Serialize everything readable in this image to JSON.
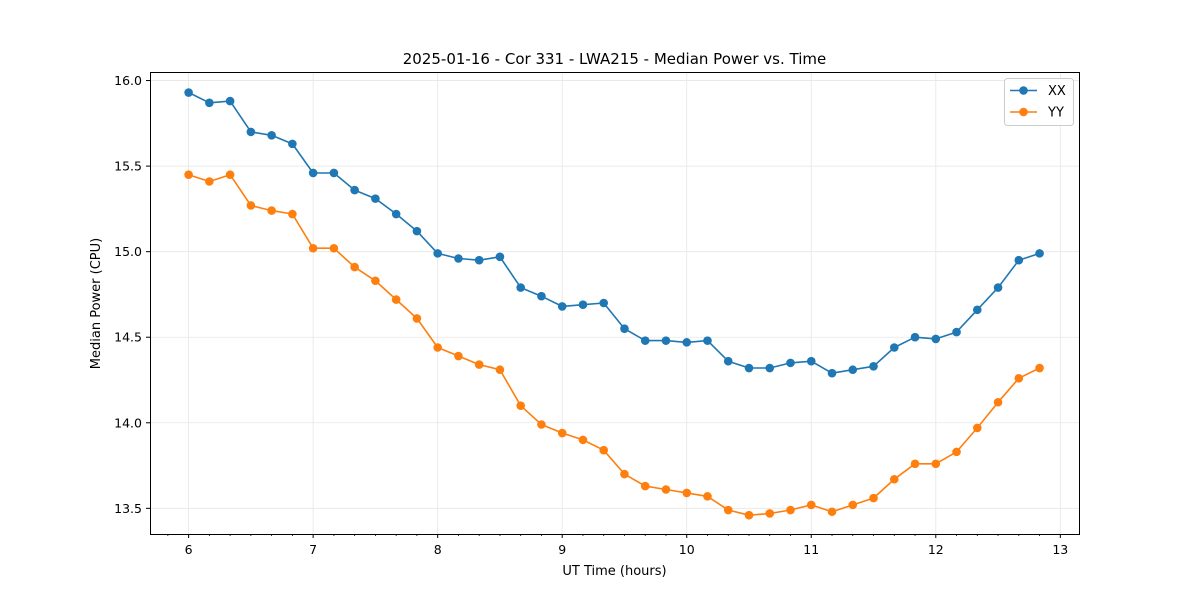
{
  "chart_data": {
    "type": "line",
    "title": "2025-01-16 - Cor 331 - LWA215 - Median Power vs. Time",
    "xlabel": "UT Time (hours)",
    "ylabel": "Median Power (CPU)",
    "xlim": [
      5.69,
      13.15
    ],
    "ylim": [
      13.35,
      16.05
    ],
    "xticks": [
      6,
      7,
      8,
      9,
      10,
      11,
      12,
      13
    ],
    "xtick_labels": [
      "6",
      "7",
      "8",
      "9",
      "10",
      "11",
      "12",
      "13"
    ],
    "yticks": [
      13.5,
      14.0,
      14.5,
      15.0,
      15.5,
      16.0
    ],
    "ytick_labels": [
      "13.5",
      "14.0",
      "14.5",
      "15.0",
      "15.5",
      "16.0"
    ],
    "grid": true,
    "legend_position": "top-right",
    "x": [
      6.0,
      6.1667,
      6.3333,
      6.5,
      6.6667,
      6.8333,
      7.0,
      7.1667,
      7.3333,
      7.5,
      7.6667,
      7.8333,
      8.0,
      8.1667,
      8.3333,
      8.5,
      8.6667,
      8.8333,
      9.0,
      9.1667,
      9.3333,
      9.5,
      9.6667,
      9.8333,
      10.0,
      10.1667,
      10.3333,
      10.5,
      10.6667,
      10.8333,
      11.0,
      11.1667,
      11.3333,
      11.5,
      11.6667,
      11.8333,
      12.0,
      12.1667,
      12.3333,
      12.5,
      12.6667,
      12.8333
    ],
    "series": [
      {
        "name": "XX",
        "color": "#1f77b4",
        "values": [
          15.93,
          15.87,
          15.88,
          15.7,
          15.68,
          15.63,
          15.46,
          15.46,
          15.36,
          15.31,
          15.22,
          15.12,
          14.99,
          14.96,
          14.95,
          14.97,
          14.79,
          14.74,
          14.68,
          14.69,
          14.7,
          14.55,
          14.48,
          14.48,
          14.47,
          14.48,
          14.36,
          14.32,
          14.32,
          14.35,
          14.36,
          14.29,
          14.31,
          14.33,
          14.44,
          14.5,
          14.49,
          14.53,
          14.66,
          14.79,
          14.95,
          14.99
        ]
      },
      {
        "name": "YY",
        "color": "#ff7f0e",
        "values": [
          15.45,
          15.41,
          15.45,
          15.27,
          15.24,
          15.22,
          15.02,
          15.02,
          14.91,
          14.83,
          14.72,
          14.61,
          14.44,
          14.39,
          14.34,
          14.31,
          14.1,
          13.99,
          13.94,
          13.9,
          13.84,
          13.7,
          13.63,
          13.61,
          13.59,
          13.57,
          13.49,
          13.46,
          13.47,
          13.49,
          13.52,
          13.48,
          13.52,
          13.56,
          13.67,
          13.76,
          13.76,
          13.83,
          13.97,
          14.12,
          14.26,
          14.32
        ]
      }
    ]
  }
}
